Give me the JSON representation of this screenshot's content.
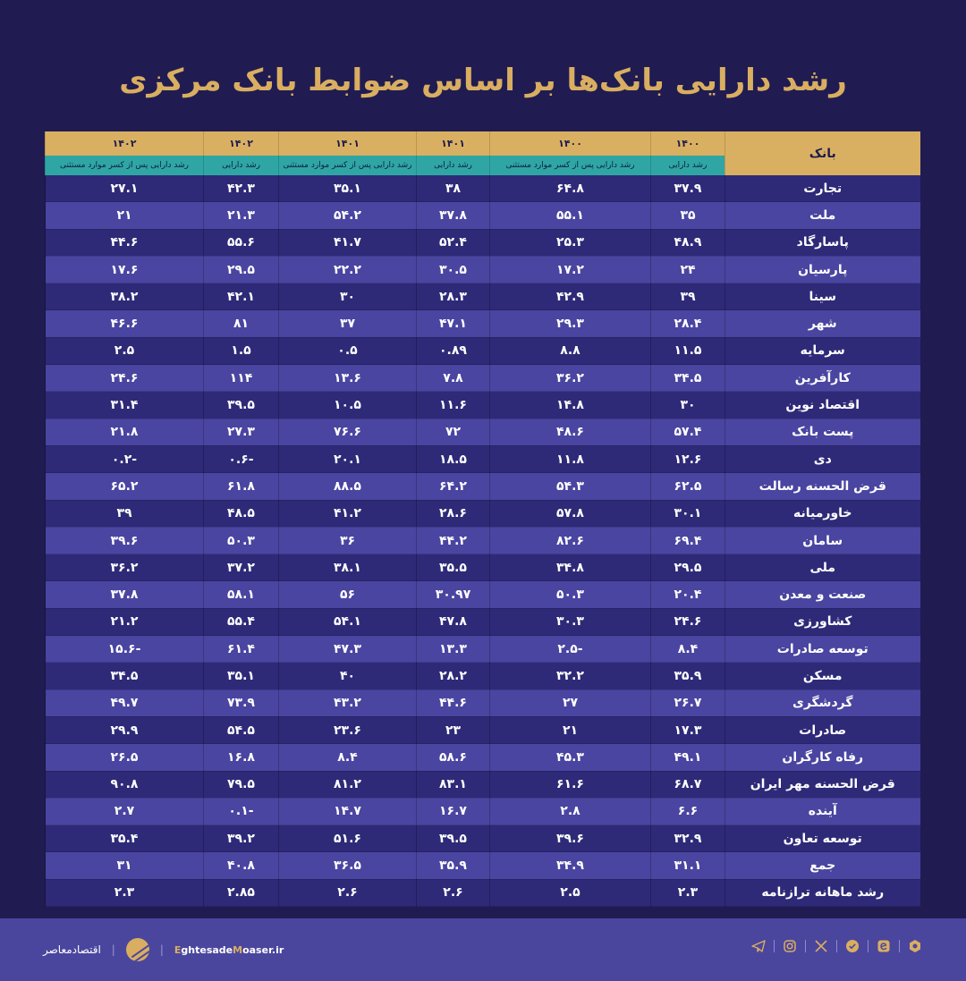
{
  "title": "رشد دارایی بانک‌ها بر اساس ضوابط بانک مرکزی",
  "table": {
    "bank_header": "بانک",
    "columns": [
      {
        "year": "۱۴۰۰",
        "label": "رشد دارایی"
      },
      {
        "year": "۱۴۰۰",
        "label": "رشد دارایی پس از کسر موارد مستثنی"
      },
      {
        "year": "۱۴۰۱",
        "label": "رشد دارایی"
      },
      {
        "year": "۱۴۰۱",
        "label": "رشد دارایی پس از کسر موارد مستثنی"
      },
      {
        "year": "۱۴۰۲",
        "label": "رشد دارایی"
      },
      {
        "year": "۱۴۰۲",
        "label": "رشد دارایی پس از کسر موارد مستثنی"
      }
    ],
    "rows": [
      {
        "bank": "تجارت",
        "v": [
          "۳۷.۹",
          "۶۴.۸",
          "۳۸",
          "۳۵.۱",
          "۴۲.۳",
          "۲۷.۱"
        ]
      },
      {
        "bank": "ملت",
        "v": [
          "۳۵",
          "۵۵.۱",
          "۳۷.۸",
          "۵۴.۲",
          "۲۱.۳",
          "۲۱"
        ]
      },
      {
        "bank": "پاسارگاد",
        "v": [
          "۴۸.۹",
          "۲۵.۳",
          "۵۲.۴",
          "۴۱.۷",
          "۵۵.۶",
          "۴۴.۶"
        ]
      },
      {
        "bank": "پارسیان",
        "v": [
          "۲۴",
          "۱۷.۲",
          "۳۰.۵",
          "۲۲.۲",
          "۲۹.۵",
          "۱۷.۶"
        ]
      },
      {
        "bank": "سینا",
        "v": [
          "۳۹",
          "۴۲.۹",
          "۲۸.۳",
          "۳۰",
          "۴۲.۱",
          "۳۸.۲"
        ]
      },
      {
        "bank": "شهر",
        "v": [
          "۲۸.۴",
          "۲۹.۳",
          "۴۷.۱",
          "۳۷",
          "۸۱",
          "۴۶.۶"
        ]
      },
      {
        "bank": "سرمایه",
        "v": [
          "۱۱.۵",
          "۸.۸",
          "۰.۸۹",
          "۰.۵",
          "۱.۵",
          "۲.۵"
        ]
      },
      {
        "bank": "کارآفرین",
        "v": [
          "۳۴.۵",
          "۳۶.۲",
          "۷.۸",
          "۱۳.۶",
          "۱۱۴",
          "۲۴.۶"
        ]
      },
      {
        "bank": "اقتصاد نوین",
        "v": [
          "۳۰",
          "۱۴.۸",
          "۱۱.۶",
          "۱۰.۵",
          "۳۹.۵",
          "۳۱.۴"
        ]
      },
      {
        "bank": "پست بانک",
        "v": [
          "۵۷.۴",
          "۴۸.۶",
          "۷۲",
          "۷۶.۶",
          "۲۷.۳",
          "۲۱.۸"
        ]
      },
      {
        "bank": "دی",
        "v": [
          "۱۲.۶",
          "۱۱.۸",
          "۱۸.۵",
          "۲۰.۱",
          "-۰.۶",
          "-۰.۲"
        ]
      },
      {
        "bank": "قرض الحسنه رسالت",
        "v": [
          "۶۲.۵",
          "۵۴.۳",
          "۶۴.۲",
          "۸۸.۵",
          "۶۱.۸",
          "۶۵.۲"
        ]
      },
      {
        "bank": "خاورمیانه",
        "v": [
          "۳۰.۱",
          "۵۷.۸",
          "۲۸.۶",
          "۴۱.۲",
          "۴۸.۵",
          "۳۹"
        ]
      },
      {
        "bank": "سامان",
        "v": [
          "۶۹.۴",
          "۸۲.۶",
          "۴۴.۲",
          "۳۶",
          "۵۰.۳",
          "۳۹.۶"
        ]
      },
      {
        "bank": "ملی",
        "v": [
          "۲۹.۵",
          "۳۴.۸",
          "۳۵.۵",
          "۳۸.۱",
          "۳۷.۲",
          "۳۶.۲"
        ]
      },
      {
        "bank": "صنعت و معدن",
        "v": [
          "۲۰.۴",
          "۵۰.۳",
          "۳۰.۹۷",
          "۵۶",
          "۵۸.۱",
          "۳۷.۸"
        ]
      },
      {
        "bank": "کشاورزی",
        "v": [
          "۲۴.۶",
          "۳۰.۳",
          "۴۷.۸",
          "۵۴.۱",
          "۵۵.۴",
          "۲۱.۲"
        ]
      },
      {
        "bank": "توسعه صادرات",
        "v": [
          "۸.۴",
          "-۲.۵",
          "۱۳.۳",
          "۴۷.۳",
          "۶۱.۴",
          "-۱۵.۶"
        ]
      },
      {
        "bank": "مسکن",
        "v": [
          "۳۵.۹",
          "۳۲.۲",
          "۲۸.۲",
          "۴۰",
          "۳۵.۱",
          "۳۴.۵"
        ]
      },
      {
        "bank": "گردشگری",
        "v": [
          "۲۶.۷",
          "۲۷",
          "۴۴.۶",
          "۴۳.۲",
          "۷۳.۹",
          "۴۹.۷"
        ]
      },
      {
        "bank": "صادرات",
        "v": [
          "۱۷.۳",
          "۲۱",
          "۲۳",
          "۲۳.۶",
          "۵۴.۵",
          "۲۹.۹"
        ]
      },
      {
        "bank": "رفاه کارگران",
        "v": [
          "۴۹.۱",
          "۴۵.۳",
          "۵۸.۶",
          "۸.۴",
          "۱۶.۸",
          "۲۶.۵"
        ]
      },
      {
        "bank": "قرض الحسنه مهر ایران",
        "v": [
          "۶۸.۷",
          "۶۱.۶",
          "۸۳.۱",
          "۸۱.۲",
          "۷۹.۵",
          "۹۰.۸"
        ]
      },
      {
        "bank": "آینده",
        "v": [
          "۶.۶",
          "۲.۸",
          "۱۶.۷",
          "۱۴.۷",
          "-۰.۱",
          "۲.۷"
        ]
      },
      {
        "bank": "توسعه تعاون",
        "v": [
          "۳۲.۹",
          "۳۹.۶",
          "۳۹.۵",
          "۵۱.۶",
          "۳۹.۲",
          "۳۵.۴"
        ]
      },
      {
        "bank": "جمع",
        "v": [
          "۳۱.۱",
          "۳۴.۹",
          "۳۵.۹",
          "۳۶.۵",
          "۴۰.۸",
          "۳۱"
        ]
      },
      {
        "bank": "رشد ماهانه ترازنامه",
        "v": [
          "۲.۳",
          "۲.۵",
          "۲.۶",
          "۲.۶",
          "۲.۸۵",
          "۲.۳"
        ]
      }
    ]
  },
  "footer": {
    "brand_fa": "اقتصادمعاصر",
    "site_prefix_1": "E",
    "site_part_1": "ghtesade",
    "site_prefix_2": "M",
    "site_part_2": "oaser.ir",
    "social_icons": [
      "telegram-icon",
      "instagram-icon",
      "x-icon",
      "shield-check-icon",
      "eitaa-icon",
      "rubika-icon"
    ]
  },
  "colors": {
    "background": "#201c52",
    "title_gold": "#d9ae61",
    "header_gold": "#d9b062",
    "header_teal": "#2fa6a4",
    "row_dark": "#2e2a78",
    "row_light": "#4a45a0",
    "footer_bg": "#4a469e"
  }
}
